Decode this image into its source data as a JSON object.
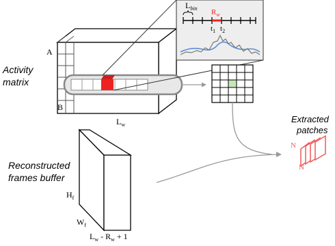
{
  "labels": {
    "activity_matrix_line1": "Activity",
    "activity_matrix_line2": "matrix",
    "reconstructed_line1": "Reconstructed",
    "reconstructed_line2": "frames buffer",
    "extracted_line1": "Extracted",
    "extracted_line2": "patches"
  },
  "cube": {
    "a": "A",
    "b": "B",
    "l_main": "L",
    "l_sub": "w"
  },
  "zoom": {
    "lbin_main": "L",
    "lbin_sub": "bin",
    "rw_main": "R",
    "rw_sub": "w",
    "t1_main": "t",
    "t1_sub": "1",
    "t2_main": "t",
    "t2_sub": "2"
  },
  "buffer": {
    "hf_main": "H",
    "hf_sub": "f",
    "wf_main": "W",
    "wf_sub": "f",
    "bottom_l": "L",
    "bottom_l_sub": "w",
    "bottom_mid": " - R",
    "bottom_r_sub": "w",
    "bottom_end": " + 1"
  },
  "patches": {
    "n_top": "N",
    "n_bottom": "N"
  },
  "colors": {
    "accent_red": "#ee2222",
    "patch_red": "#f06060",
    "grid_highlight": "#c6e6b6",
    "zoom_bg": "#eeeeee",
    "arrow_gray": "#999999"
  }
}
